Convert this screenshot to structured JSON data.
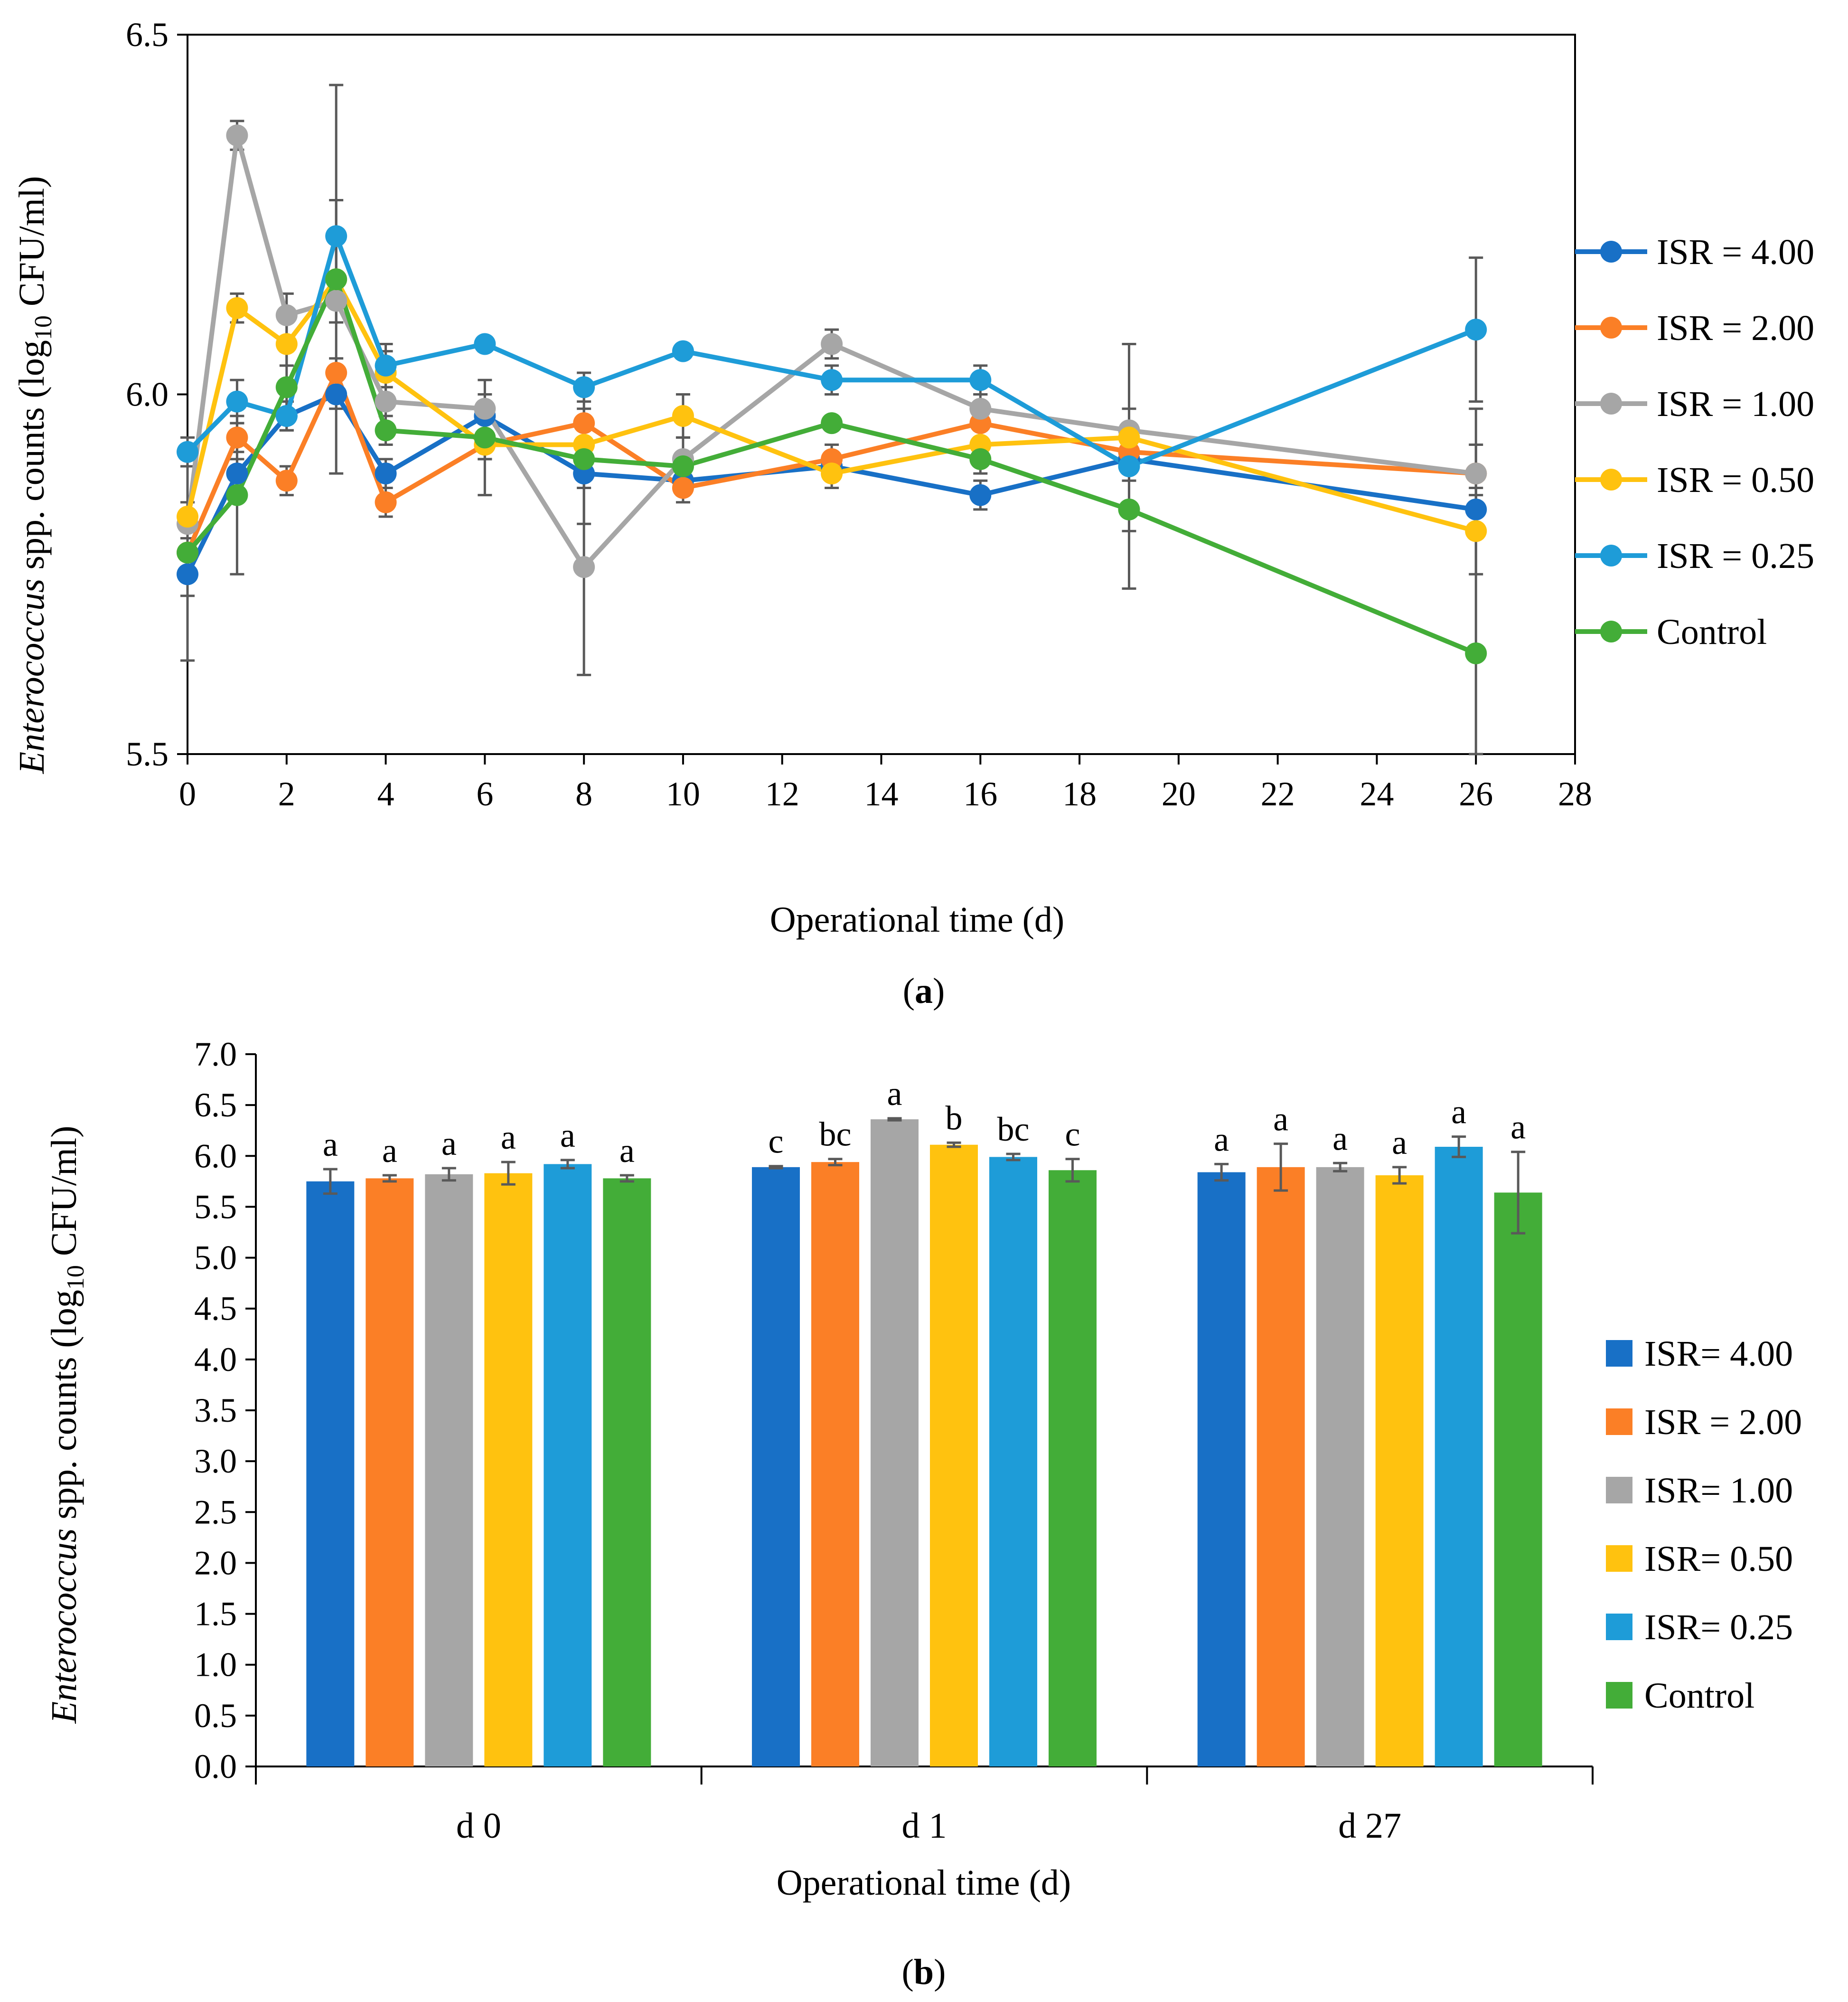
{
  "chart_data": [
    {
      "type": "line",
      "panel_label": "a",
      "title": "",
      "xlabel": "Operational time (d)",
      "ylabel": {
        "italic": "Enterococcus",
        "rest": " spp. counts (log",
        "sub": "10",
        "end": " CFU/ml)"
      },
      "xlim": [
        0,
        28
      ],
      "ylim": [
        5.5,
        6.5
      ],
      "xticks": [
        0,
        2,
        4,
        6,
        8,
        10,
        12,
        14,
        16,
        18,
        20,
        22,
        24,
        26,
        28
      ],
      "xtick_labels": [
        "0",
        "2",
        "4",
        "6",
        "8",
        "10",
        "12",
        "14",
        "16",
        "18",
        "20",
        "22",
        "24",
        "26",
        "28"
      ],
      "yticks": [
        5.5,
        6.0,
        6.5
      ],
      "ytick_labels": [
        "5.5",
        "6.0",
        "6.5"
      ],
      "grid": false,
      "legend_position": "right",
      "x": [
        0,
        1,
        2,
        3,
        4,
        6,
        8,
        10,
        13,
        16,
        19,
        26
      ],
      "series": [
        {
          "name": "ISR = 4.00",
          "color": "#1870c6",
          "values": [
            5.75,
            5.89,
            5.97,
            6.0,
            5.89,
            5.97,
            5.89,
            5.88,
            5.9,
            5.86,
            5.91,
            5.84
          ],
          "errors": [
            0.03,
            0.02,
            0.02,
            0.02,
            0.02,
            0.02,
            0.02,
            0.02,
            0.02,
            0.02,
            0.02,
            0.02
          ]
        },
        {
          "name": "ISR = 2.00",
          "color": "#fb7f26",
          "values": [
            5.78,
            5.94,
            5.88,
            6.03,
            5.85,
            5.93,
            5.96,
            5.87,
            5.91,
            5.96,
            5.92,
            5.89
          ],
          "errors": [
            0.02,
            0.02,
            0.02,
            0.02,
            0.02,
            0.02,
            0.02,
            0.02,
            0.02,
            0.02,
            0.02,
            0.04
          ]
        },
        {
          "name": "ISR = 1.00",
          "color": "#a6a6a6",
          "values": [
            5.82,
            6.36,
            6.11,
            6.13,
            5.99,
            5.98,
            5.76,
            5.91,
            6.07,
            5.98,
            5.95,
            5.89
          ],
          "errors": [
            0.02,
            0.02,
            0.03,
            0.03,
            0.02,
            0.02,
            0.15,
            0.03,
            0.02,
            0.02,
            0.03,
            0.09
          ]
        },
        {
          "name": "ISR = 0.50",
          "color": "#ffc20f",
          "values": [
            5.83,
            6.12,
            6.07,
            6.16,
            6.03,
            5.93,
            5.93,
            5.97,
            5.89,
            5.93,
            5.94,
            5.81
          ],
          "errors": [
            0.02,
            0.02,
            0.03,
            0.06,
            0.03,
            0.02,
            0.03,
            0.03,
            0.02,
            0.02,
            0.13,
            0.06
          ]
        },
        {
          "name": "ISR = 0.25",
          "color": "#1e9cd8",
          "values": [
            5.92,
            5.99,
            5.97,
            6.22,
            6.04,
            6.07,
            6.01,
            6.06,
            6.02,
            6.02,
            5.9,
            6.09
          ],
          "errors": [
            0.02,
            0.03,
            0.02,
            0.05,
            0.03,
            0.01,
            0.02,
            0.01,
            0.02,
            0.02,
            0.02,
            0.1
          ]
        },
        {
          "name": "Control",
          "color": "#43ad38",
          "values": [
            5.78,
            5.86,
            6.01,
            6.16,
            5.95,
            5.94,
            5.91,
            5.9,
            5.96,
            5.91,
            5.84,
            5.64
          ],
          "errors": [
            0.15,
            0.11,
            0.05,
            0.27,
            0.02,
            0.08,
            0.09,
            0.01,
            0.01,
            0.02,
            0.11,
            0.16
          ]
        }
      ]
    },
    {
      "type": "bar",
      "panel_label": "b",
      "title": "",
      "xlabel": "Operational time (d)",
      "ylabel": {
        "italic": "Enterococcus",
        "rest": " spp. counts (log",
        "sub": "10",
        "end": " CFU/ml)"
      },
      "ylim": [
        0,
        7
      ],
      "yticks": [
        0,
        0.5,
        1,
        1.5,
        2,
        2.5,
        3,
        3.5,
        4,
        4.5,
        5,
        5.5,
        6,
        6.5,
        7
      ],
      "ytick_labels": [
        "0.0",
        "0.5",
        "1.0",
        "1.5",
        "2.0",
        "2.5",
        "3.0",
        "3.5",
        "4.0",
        "4.5",
        "5.0",
        "5.5",
        "6.0",
        "6.5",
        "7.0"
      ],
      "grid": false,
      "legend_position": "right",
      "categories": [
        "d 0",
        "d 1",
        "d 27"
      ],
      "series": [
        {
          "name": "ISR= 4.00",
          "color": "#1870c6",
          "values": [
            5.75,
            5.89,
            5.84
          ],
          "errors": [
            0.12,
            0.01,
            0.08
          ],
          "letters": [
            "a",
            "c",
            "a"
          ]
        },
        {
          "name": "ISR = 2.00",
          "color": "#fb7f26",
          "values": [
            5.78,
            5.94,
            5.89
          ],
          "errors": [
            0.03,
            0.03,
            0.23
          ],
          "letters": [
            "a",
            "bc",
            "a"
          ]
        },
        {
          "name": "ISR= 1.00",
          "color": "#a6a6a6",
          "values": [
            5.82,
            6.36,
            5.89
          ],
          "errors": [
            0.06,
            0.01,
            0.04
          ],
          "letters": [
            "a",
            "a",
            "a"
          ]
        },
        {
          "name": "ISR= 0.50",
          "color": "#ffc20f",
          "values": [
            5.83,
            6.11,
            5.81
          ],
          "errors": [
            0.11,
            0.02,
            0.08
          ],
          "letters": [
            "a",
            "b",
            "a"
          ]
        },
        {
          "name": "ISR= 0.25",
          "color": "#1e9cd8",
          "values": [
            5.92,
            5.99,
            6.09
          ],
          "errors": [
            0.04,
            0.03,
            0.1
          ],
          "letters": [
            "a",
            "bc",
            "a"
          ]
        },
        {
          "name": "Control",
          "color": "#43ad38",
          "values": [
            5.78,
            5.86,
            5.64
          ],
          "errors": [
            0.03,
            0.11,
            0.4
          ],
          "letters": [
            "a",
            "c",
            "a"
          ]
        }
      ]
    }
  ]
}
